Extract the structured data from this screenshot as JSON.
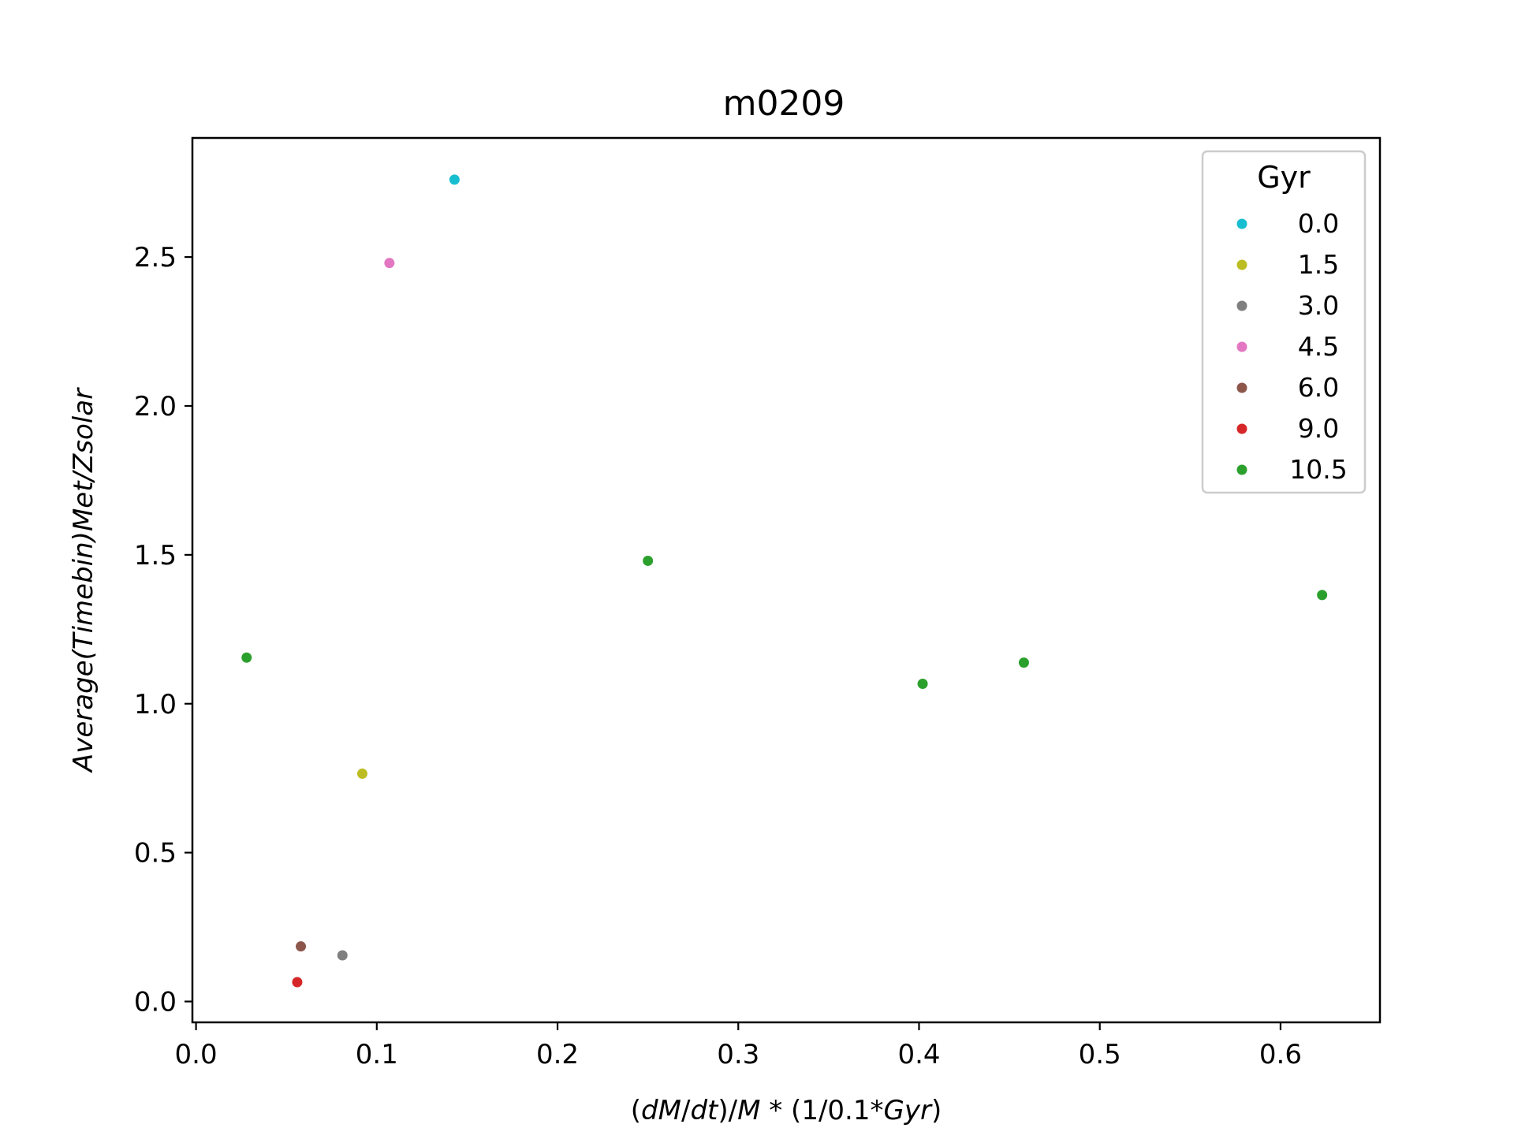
{
  "chart_data": {
    "type": "scatter",
    "title": "m0209",
    "xlabel": "(dM/dt)/M * (1/0.1*Gyr)",
    "ylabel": "Average(Timebin)Met/Zsolar",
    "xlim": [
      -0.002,
      0.655
    ],
    "ylim": [
      -0.07,
      2.9
    ],
    "xticks": [
      0.0,
      0.1,
      0.2,
      0.3,
      0.4,
      0.5,
      0.6
    ],
    "xtick_labels": [
      "0.0",
      "0.1",
      "0.2",
      "0.3",
      "0.4",
      "0.5",
      "0.6"
    ],
    "yticks": [
      0.0,
      0.5,
      1.0,
      1.5,
      2.0,
      2.5
    ],
    "ytick_labels": [
      "0.0",
      "0.5",
      "1.0",
      "1.5",
      "2.0",
      "2.5"
    ],
    "grid": false,
    "legend": {
      "title": "Gyr",
      "placement": "top-right"
    },
    "series": [
      {
        "name": "0.0",
        "color": "#17becf",
        "points": [
          [
            0.143,
            2.76
          ]
        ]
      },
      {
        "name": "1.5",
        "color": "#bcbd22",
        "points": [
          [
            0.092,
            0.765
          ]
        ]
      },
      {
        "name": "3.0",
        "color": "#7f7f7f",
        "points": [
          [
            0.081,
            0.155
          ]
        ]
      },
      {
        "name": "4.5",
        "color": "#e377c2",
        "points": [
          [
            0.107,
            2.48
          ]
        ]
      },
      {
        "name": "6.0",
        "color": "#8c564b",
        "points": [
          [
            0.058,
            0.185
          ]
        ]
      },
      {
        "name": "9.0",
        "color": "#d62728",
        "points": [
          [
            0.056,
            0.065
          ]
        ]
      },
      {
        "name": "10.5",
        "color": "#2ca02c",
        "points": [
          [
            0.028,
            1.155
          ],
          [
            0.25,
            1.48
          ],
          [
            0.402,
            1.067
          ],
          [
            0.458,
            1.138
          ],
          [
            0.623,
            1.365
          ]
        ]
      }
    ]
  }
}
